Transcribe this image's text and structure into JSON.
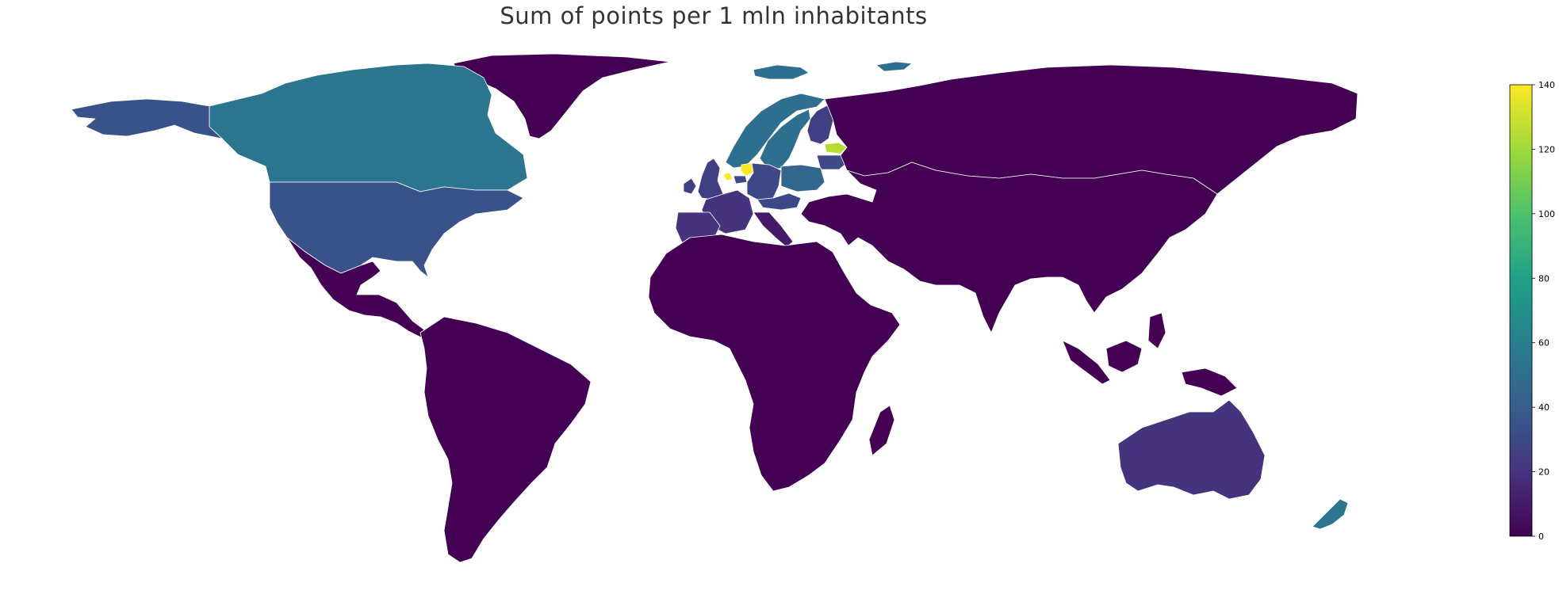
{
  "chart_data": {
    "type": "choropleth",
    "title": "Sum of points per 1 mln inhabitants",
    "colormap": "viridis",
    "colorbar": {
      "min": 0,
      "max": 140,
      "ticks": [
        "0",
        "20",
        "40",
        "60",
        "80",
        "100",
        "120",
        "140"
      ],
      "placement": "right"
    },
    "regions": [
      {
        "name": "Greenland",
        "value": 0
      },
      {
        "name": "Canada",
        "value": 55
      },
      {
        "name": "Alaska (USA)",
        "value": 35
      },
      {
        "name": "USA",
        "value": 35
      },
      {
        "name": "Mexico & Central America",
        "value": 0
      },
      {
        "name": "South America",
        "value": 0
      },
      {
        "name": "Iceland",
        "value": 50
      },
      {
        "name": "Svalbard",
        "value": 50
      },
      {
        "name": "Norway",
        "value": 50
      },
      {
        "name": "Sweden",
        "value": 50
      },
      {
        "name": "Finland",
        "value": 25
      },
      {
        "name": "Estonia",
        "value": 125
      },
      {
        "name": "Latvia / Baltics",
        "value": 30
      },
      {
        "name": "United Kingdom",
        "value": 25
      },
      {
        "name": "Ireland",
        "value": 25
      },
      {
        "name": "Netherlands",
        "value": 140
      },
      {
        "name": "Belgium",
        "value": 30
      },
      {
        "name": "Luxembourg",
        "value": 140
      },
      {
        "name": "Germany",
        "value": 30
      },
      {
        "name": "Poland",
        "value": 45
      },
      {
        "name": "Czechia / Austria",
        "value": 30
      },
      {
        "name": "France",
        "value": 20
      },
      {
        "name": "Spain",
        "value": 20
      },
      {
        "name": "Italy",
        "value": 10
      },
      {
        "name": "Russia",
        "value": 0
      },
      {
        "name": "Asia",
        "value": 0
      },
      {
        "name": "Africa",
        "value": 0
      },
      {
        "name": "Madagascar",
        "value": 0
      },
      {
        "name": "Australia",
        "value": 20
      },
      {
        "name": "New Zealand",
        "value": 55
      },
      {
        "name": "Southeast Asia",
        "value": 0
      }
    ]
  }
}
